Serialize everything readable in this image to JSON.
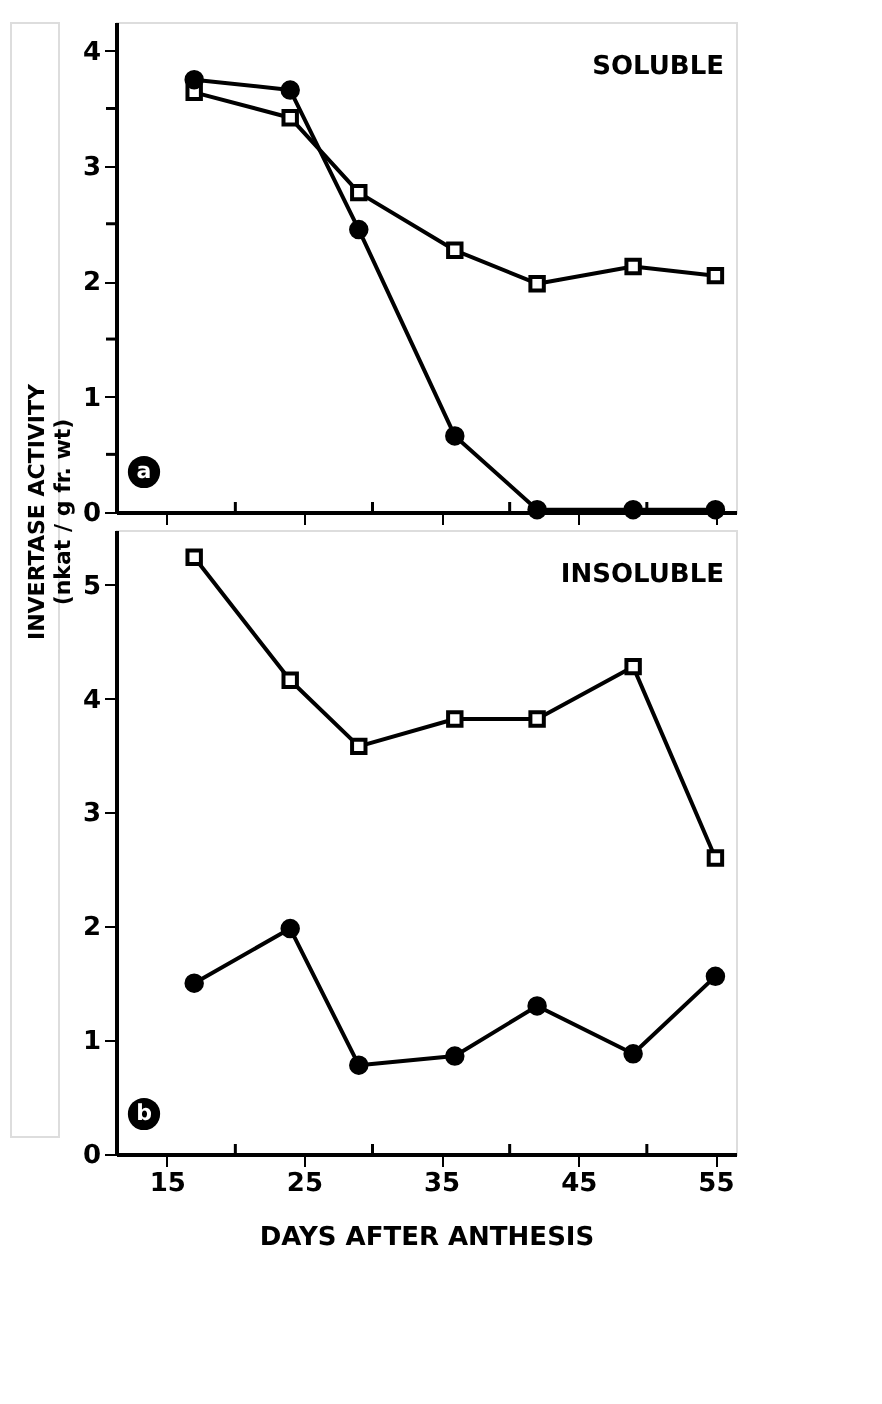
{
  "chart_data": [
    {
      "type": "line",
      "title": "SOLUBLE",
      "ylabel": "INVERTASE ACTIVITY\n(nkat / g fr. wt)",
      "x": [
        17,
        24,
        29,
        36,
        42,
        49,
        55
      ],
      "xlim": [
        11.3,
        56.5
      ],
      "xticks": [
        15,
        {
          "value": 20,
          "label": null
        },
        25,
        {
          "value": 30,
          "label": null
        },
        35,
        {
          "value": 40,
          "label": null
        },
        45,
        {
          "value": 50,
          "label": null
        },
        55
      ],
      "ylim": [
        0,
        4.25
      ],
      "yticks": [
        0,
        {
          "value": 0.5,
          "label": null
        },
        1,
        {
          "value": 1.5,
          "label": null
        },
        2,
        {
          "value": 2.5,
          "label": null
        },
        3,
        {
          "value": 3.5,
          "label": null
        },
        4
      ],
      "tick_labels": "y",
      "grid": false,
      "annotations": [
        "a"
      ],
      "series": [
        {
          "color": "#000000",
          "marker": "square",
          "values": [
            3.64,
            3.42,
            2.77,
            2.27,
            1.98,
            2.13,
            2.05
          ]
        },
        {
          "color": "#000000",
          "marker": "circle",
          "values": [
            3.75,
            3.66,
            2.45,
            0.66,
            0.02,
            0.02,
            0.02
          ]
        }
      ]
    },
    {
      "type": "line",
      "title": "INSOLUBLE",
      "xlabel": "DAYS AFTER ANTHESIS",
      "x": [
        17,
        24,
        29,
        36,
        42,
        49,
        55
      ],
      "xlim": [
        11.3,
        56.5
      ],
      "xticks": [
        15,
        {
          "value": 20,
          "label": null
        },
        25,
        {
          "value": 30,
          "label": null
        },
        35,
        {
          "value": 40,
          "label": null
        },
        45,
        {
          "value": 50,
          "label": null
        },
        55
      ],
      "ylim": [
        0,
        5.48
      ],
      "yticks": [
        0,
        1,
        2,
        3,
        4,
        5
      ],
      "grid": false,
      "annotations": [
        "b"
      ],
      "series": [
        {
          "color": "#000000",
          "marker": "square",
          "values": [
            5.24,
            4.16,
            3.58,
            3.82,
            3.82,
            4.28,
            2.6
          ]
        },
        {
          "color": "#000000",
          "marker": "circle",
          "values": [
            1.5,
            1.98,
            0.78,
            0.86,
            1.3,
            0.88,
            1.56
          ]
        }
      ]
    }
  ]
}
